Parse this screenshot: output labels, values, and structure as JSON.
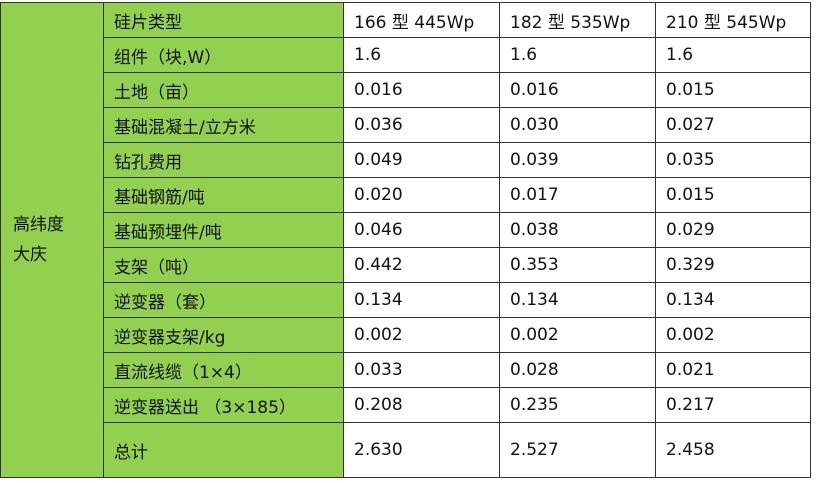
{
  "table": {
    "group_label": [
      "高纬度",
      "大庆"
    ],
    "header": [
      "硅片类型",
      "166 型 445Wp",
      "182 型 535Wp",
      "210 型 545Wp"
    ],
    "rows": [
      [
        "组件（块,W）",
        "1.6",
        "1.6",
        "1.6"
      ],
      [
        "土地（亩）",
        "0.016",
        "0.016",
        "0.015"
      ],
      [
        "基础混凝土/立方米",
        "0.036",
        "0.030",
        "0.027"
      ],
      [
        "钻孔费用",
        "0.049",
        "0.039",
        "0.035"
      ],
      [
        "基础钢筋/吨",
        "0.020",
        "0.017",
        "0.015"
      ],
      [
        "基础预埋件/吨",
        "0.046",
        "0.038",
        "0.029"
      ],
      [
        "支架（吨）",
        "0.442",
        "0.353",
        "0.329"
      ],
      [
        "逆变器（套）",
        "0.134",
        "0.134",
        "0.134"
      ],
      [
        "逆变器支架/kg",
        "0.002",
        "0.002",
        "0.002"
      ],
      [
        "直流线缆（1×4）",
        "0.033",
        "0.028",
        "0.021"
      ],
      [
        "逆变器送出 （3×185）",
        "0.208",
        "0.235",
        "0.217"
      ],
      [
        "总计",
        "2.630",
        "2.527",
        "2.458"
      ]
    ]
  }
}
